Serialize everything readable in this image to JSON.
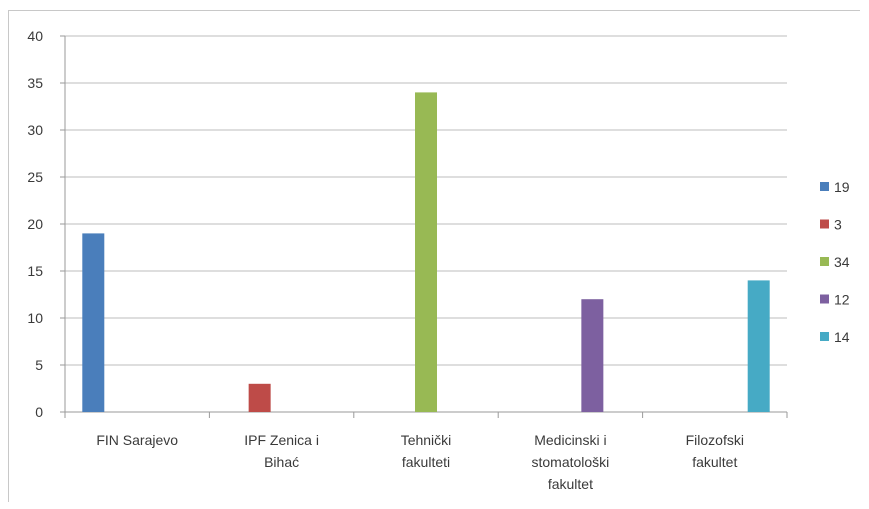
{
  "chart_data": {
    "type": "bar",
    "categories": [
      [
        "FIN Sarajevo"
      ],
      [
        "IPF Zenica i",
        "Bihać"
      ],
      [
        "Tehnički",
        "fakulteti"
      ],
      [
        "Medicinski i",
        "stomatološki",
        "fakultet"
      ],
      [
        "Filozofski",
        "fakultet"
      ]
    ],
    "series": [
      {
        "name": "19",
        "values": [
          19,
          null,
          null,
          null,
          null
        ],
        "color": "#4a7ebb"
      },
      {
        "name": "3",
        "values": [
          null,
          3,
          null,
          null,
          null
        ],
        "color": "#be4b48"
      },
      {
        "name": "34",
        "values": [
          null,
          null,
          34,
          null,
          null
        ],
        "color": "#98b954"
      },
      {
        "name": "12",
        "values": [
          null,
          null,
          null,
          12,
          null
        ],
        "color": "#7d60a0"
      },
      {
        "name": "14",
        "values": [
          null,
          null,
          null,
          null,
          14
        ],
        "color": "#46aac5"
      }
    ],
    "yticks": [
      "0",
      "5",
      "10",
      "15",
      "20",
      "25",
      "30",
      "35",
      "40"
    ],
    "ylim": [
      0,
      40
    ],
    "grid": true,
    "legend_position": "right"
  }
}
